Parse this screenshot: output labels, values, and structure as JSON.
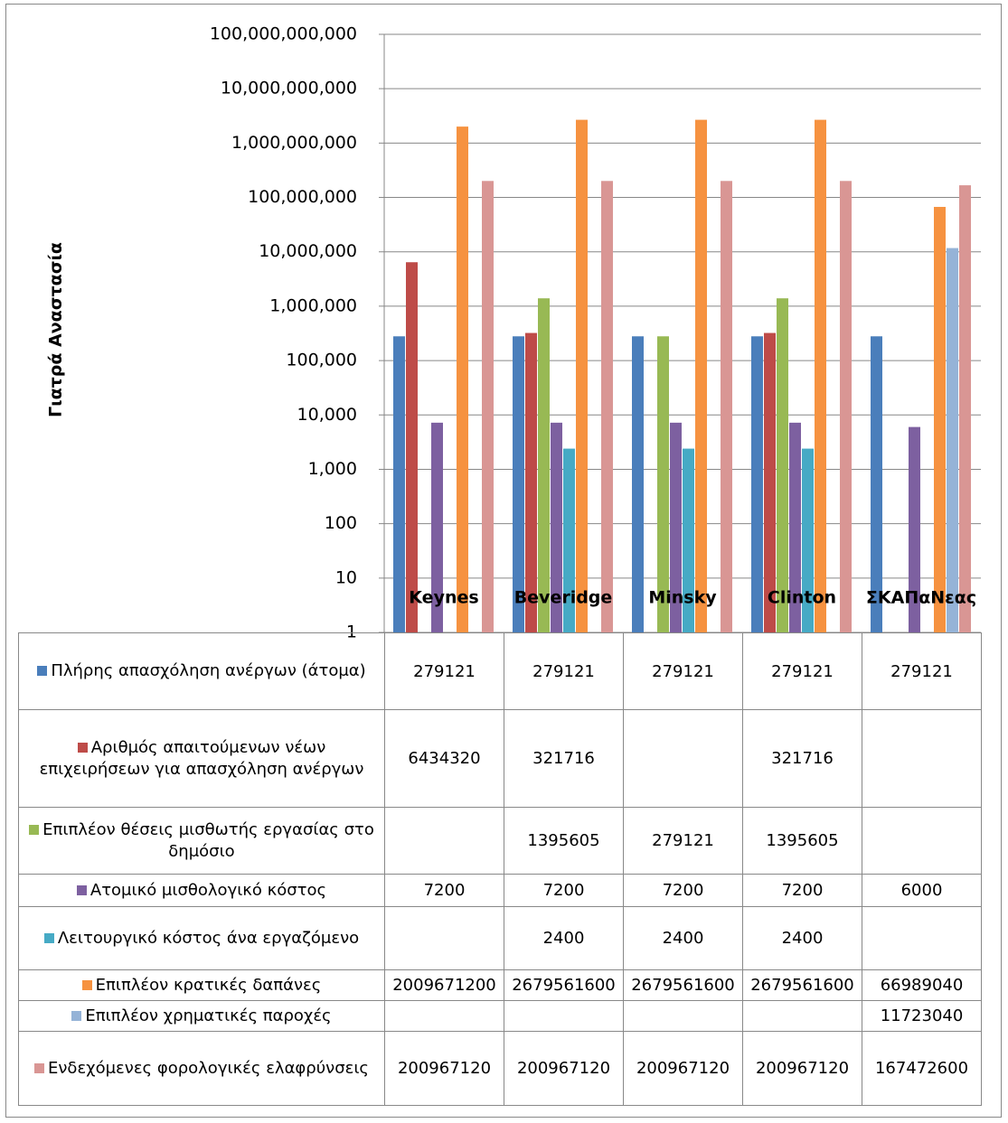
{
  "chart_data": {
    "type": "bar",
    "y_axis_label": "Γιατρά Αναστασία",
    "categories": [
      "Keynes",
      "Beveridge",
      "Minsky",
      "Clinton",
      "ΣΚΑΠαΝεας"
    ],
    "log_scale": true,
    "grid": true,
    "ylim": [
      1,
      100000000000
    ],
    "yticks": [
      1,
      10,
      100,
      {
        "value": 1000,
        "label": "1,000"
      },
      {
        "value": 10000,
        "label": "10,000"
      },
      {
        "value": 100000,
        "label": "100,000"
      },
      {
        "value": 1000000,
        "label": "1,000,000"
      },
      {
        "value": 10000000,
        "label": "10,000,000"
      },
      {
        "value": 100000000,
        "label": "100,000,000"
      },
      {
        "value": 1000000000,
        "label": "1,000,000,000"
      },
      {
        "value": 10000000000,
        "label": "10,000,000,000"
      },
      {
        "value": 100000000000,
        "label": "100,000,000,000"
      }
    ],
    "series": [
      {
        "name": "Πλήρης απασχόληση ανέργων (άτομα)",
        "color": "#4a7ebb",
        "values": [
          279121,
          279121,
          279121,
          279121,
          279121
        ]
      },
      {
        "name": "Αριθμός απαιτούμενων νέων επιχειρήσεων για απασχόληση ανέργων",
        "color": "#be4b48",
        "values": [
          6434320,
          321716,
          null,
          321716,
          null
        ]
      },
      {
        "name": "Επιπλέον θέσεις μισθωτής εργασίας στο δημόσιο",
        "color": "#98b954",
        "values": [
          null,
          1395605,
          279121,
          1395605,
          null
        ]
      },
      {
        "name": "Ατομικό μισθολογικό κόστος",
        "color": "#7d60a0",
        "values": [
          7200,
          7200,
          7200,
          7200,
          6000
        ]
      },
      {
        "name": "Λειτουργικό κόστος άνα εργαζόμενο",
        "color": "#46aac5",
        "values": [
          null,
          2400,
          2400,
          2400,
          null
        ]
      },
      {
        "name": "Επιπλέον κρατικές δαπάνες",
        "color": "#f69240",
        "values": [
          2009671200,
          2679561600,
          2679561600,
          2679561600,
          66989040
        ]
      },
      {
        "name": "Επιπλέον χρηματικές παροχές",
        "color": "#95b3d7",
        "values": [
          null,
          null,
          null,
          null,
          11723040
        ]
      },
      {
        "name": "Ενδεχόμενες φορολογικές ελαφρύνσεις",
        "color": "#d99694",
        "values": [
          200967120,
          200967120,
          200967120,
          200967120,
          167472600
        ]
      }
    ]
  }
}
